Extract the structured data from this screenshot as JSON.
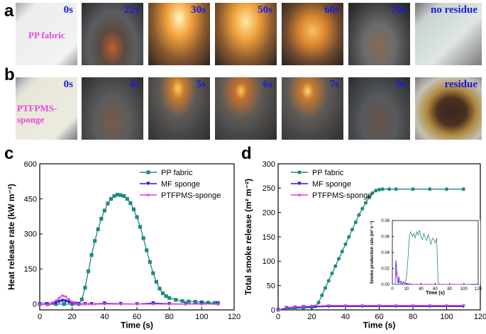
{
  "panel_letters": {
    "a": "a",
    "b": "b",
    "c": "c",
    "d": "d"
  },
  "row_a": {
    "sample_label": "PP fabric",
    "times": [
      "0s",
      "22s",
      "30s",
      "50s",
      "60s",
      "70s",
      "no residue"
    ]
  },
  "row_b": {
    "sample_label": "PTFPMS-sponge",
    "times": [
      "0s",
      "4s",
      "5s",
      "6s",
      "7s",
      "9s",
      "residue"
    ]
  },
  "colors": {
    "pp": "#1f8a80",
    "mf": "#1a1adb",
    "ptf": "#e03be0",
    "time_text": "#1a1adb",
    "sample_text": "#e64ad9"
  },
  "chart_data": [
    {
      "type": "line",
      "panel": "c",
      "xlabel": "Time (s)",
      "ylabel": "Heat release rate (kW m⁻²)",
      "xlim": [
        0,
        120
      ],
      "ylim": [
        -25,
        600
      ],
      "xticks": [
        "0",
        "20",
        "40",
        "60",
        "80",
        "100",
        "120"
      ],
      "yticks": [
        "0",
        "150",
        "300",
        "450",
        "600"
      ],
      "legend_position": "top-right",
      "series": [
        {
          "name": "PP fabric",
          "color": "#1f8a80",
          "marker": "square",
          "x": [
            0,
            5,
            10,
            15,
            20,
            24,
            26,
            28,
            30,
            32,
            34,
            36,
            38,
            40,
            42,
            44,
            46,
            48,
            50,
            52,
            54,
            56,
            58,
            60,
            62,
            64,
            66,
            68,
            70,
            72,
            74,
            76,
            78,
            80,
            84,
            88,
            92,
            96,
            100,
            104,
            108,
            110
          ],
          "y": [
            0,
            0,
            0,
            0,
            0,
            0,
            20,
            70,
            140,
            210,
            270,
            320,
            365,
            400,
            430,
            450,
            462,
            468,
            466,
            462,
            450,
            432,
            405,
            372,
            330,
            282,
            230,
            180,
            132,
            95,
            66,
            46,
            34,
            26,
            18,
            13,
            11,
            10,
            8,
            6,
            5,
            5
          ]
        },
        {
          "name": "MF sponge",
          "color": "#1a1adb",
          "marker": "triangle-down",
          "x": [
            0,
            4,
            8,
            10,
            12,
            14,
            16,
            18,
            20,
            22,
            24,
            28,
            32,
            40,
            50,
            60,
            70,
            80,
            90,
            100,
            110
          ],
          "y": [
            0,
            0,
            2,
            6,
            10,
            14,
            12,
            8,
            4,
            2,
            1,
            0,
            0,
            3,
            1,
            0,
            4,
            1,
            0,
            2,
            0
          ]
        },
        {
          "name": "PTFPMS-sponge",
          "color": "#e03be0",
          "marker": "star",
          "x": [
            0,
            2,
            4,
            6,
            8,
            10,
            12,
            14,
            16,
            18,
            20,
            22,
            24,
            26,
            28,
            30,
            34,
            40,
            50,
            60,
            70,
            80,
            90,
            100,
            110
          ],
          "y": [
            0,
            0,
            -2,
            0,
            5,
            14,
            26,
            36,
            32,
            20,
            8,
            2,
            0,
            0,
            0,
            0,
            0,
            0,
            0,
            0,
            0,
            0,
            0,
            0,
            0
          ]
        }
      ]
    },
    {
      "type": "line",
      "panel": "d",
      "xlabel": "Time (s)",
      "ylabel": "Total smoke release (m² m⁻²)",
      "xlim": [
        0,
        120
      ],
      "ylim": [
        0,
        300
      ],
      "xticks": [
        "0",
        "20",
        "40",
        "60",
        "80",
        "100",
        "120"
      ],
      "yticks": [
        "0",
        "50",
        "100",
        "150",
        "200",
        "250",
        "300"
      ],
      "legend_position": "top-right",
      "series": [
        {
          "name": "PP fabric",
          "color": "#1f8a80",
          "marker": "circle",
          "x": [
            0,
            5,
            10,
            15,
            20,
            22,
            24,
            26,
            28,
            30,
            32,
            34,
            36,
            38,
            40,
            42,
            44,
            46,
            48,
            50,
            52,
            54,
            56,
            58,
            60,
            62,
            66,
            70,
            80,
            90,
            100,
            110
          ],
          "y": [
            0,
            2,
            3,
            4,
            5,
            7,
            15,
            30,
            45,
            60,
            75,
            90,
            105,
            120,
            135,
            150,
            165,
            180,
            195,
            208,
            220,
            231,
            240,
            245,
            247,
            248,
            248,
            248,
            248,
            248,
            248,
            248
          ]
        },
        {
          "name": "MF sponge",
          "color": "#1a1adb",
          "marker": "triangle-down",
          "x": [
            0,
            5,
            10,
            15,
            20,
            30,
            40,
            50,
            60,
            70,
            80,
            90,
            100,
            110
          ],
          "y": [
            0,
            4,
            5,
            6,
            6,
            7,
            7,
            7,
            7,
            7,
            7,
            7,
            7,
            7
          ]
        },
        {
          "name": "PTFPMS-sponge",
          "color": "#e03be0",
          "marker": "star",
          "x": [
            0,
            5,
            10,
            15,
            20,
            30,
            40,
            50,
            60,
            70,
            80,
            90,
            100,
            110
          ],
          "y": [
            0,
            5,
            6,
            7,
            8,
            9,
            9,
            9,
            9,
            9,
            9,
            9,
            9,
            9
          ]
        }
      ],
      "inset": {
        "type": "line",
        "xlabel": "Time (s)",
        "ylabel": "Smoke production rate (m² s⁻¹)",
        "xlim": [
          0,
          120
        ],
        "ylim": [
          0,
          0.08
        ],
        "xticks": [
          "0",
          "20",
          "40",
          "60",
          "80",
          "100",
          "120"
        ],
        "yticks": [
          "0.00",
          "0.02",
          "0.04",
          "0.06",
          "0.08"
        ],
        "series": [
          {
            "name": "PP fabric",
            "color": "#1f8a80",
            "x": [
              0,
              10,
              18,
              20,
              22,
              24,
              26,
              28,
              30,
              32,
              34,
              36,
              38,
              40,
              42,
              44,
              46,
              48,
              50,
              52,
              54,
              56,
              58,
              60,
              62,
              64,
              66,
              70,
              80,
              90,
              100,
              110
            ],
            "y": [
              0,
              0,
              0,
              0.012,
              0.035,
              0.062,
              0.066,
              0.06,
              0.064,
              0.058,
              0.066,
              0.062,
              0.068,
              0.06,
              0.056,
              0.064,
              0.058,
              0.055,
              0.062,
              0.057,
              0.05,
              0.058,
              0.056,
              0.052,
              0.058,
              0.003,
              0,
              0,
              0,
              0,
              0,
              0
            ]
          },
          {
            "name": "MF sponge",
            "color": "#1a1adb",
            "x": [
              0,
              4,
              5,
              6,
              7,
              8,
              9,
              10,
              12,
              14,
              16,
              18,
              20,
              30,
              50,
              80,
              110
            ],
            "y": [
              0,
              0,
              0.03,
              0.018,
              0.004,
              0.001,
              0.01,
              0.002,
              0.004,
              0.001,
              0.003,
              0,
              0.001,
              0,
              0,
              0,
              0
            ]
          },
          {
            "name": "PTFPMS-sponge",
            "color": "#e03be0",
            "x": [
              0,
              4,
              5,
              6,
              7,
              8,
              10,
              12,
              14,
              16,
              20,
              30,
              50,
              80,
              110
            ],
            "y": [
              0,
              0,
              0.018,
              0.01,
              0.006,
              0.002,
              0.004,
              0.001,
              0.002,
              0,
              0,
              0,
              0,
              0,
              0
            ]
          }
        ]
      }
    }
  ]
}
